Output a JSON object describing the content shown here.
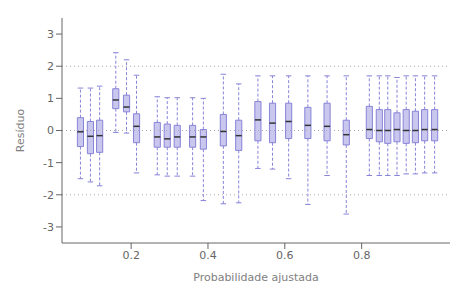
{
  "chart_data": {
    "type": "box",
    "xlabel": "Probabilidade ajustada",
    "ylabel": "Resíduo",
    "xlim": [
      0.02,
      1.03
    ],
    "ylim": [
      -3.5,
      3.5
    ],
    "xticks": [
      0.2,
      0.4,
      0.6,
      0.8
    ],
    "yticks": [
      -3,
      -2,
      -1,
      0,
      1,
      2,
      3
    ],
    "hlines": [
      -2.0,
      0.0,
      2.0
    ],
    "grid": false,
    "boxes": [
      {
        "x": 0.068,
        "q1": -0.5,
        "median": -0.04,
        "q3": 0.4,
        "low": -1.5,
        "high": 1.32
      },
      {
        "x": 0.094,
        "q1": -0.72,
        "median": -0.18,
        "q3": 0.28,
        "low": -1.6,
        "high": 1.32
      },
      {
        "x": 0.118,
        "q1": -0.68,
        "median": -0.16,
        "q3": 0.32,
        "low": -1.72,
        "high": 1.38
      },
      {
        "x": 0.16,
        "q1": 0.68,
        "median": 0.95,
        "q3": 1.3,
        "low": -0.06,
        "high": 2.42
      },
      {
        "x": 0.188,
        "q1": 0.58,
        "median": 0.73,
        "q3": 1.1,
        "low": -0.08,
        "high": 2.2
      },
      {
        "x": 0.214,
        "q1": -0.38,
        "median": 0.13,
        "q3": 0.52,
        "low": -1.32,
        "high": 1.72
      },
      {
        "x": 0.268,
        "q1": -0.52,
        "median": -0.2,
        "q3": 0.25,
        "low": -1.38,
        "high": 1.05
      },
      {
        "x": 0.294,
        "q1": -0.52,
        "median": -0.26,
        "q3": 0.2,
        "low": -1.42,
        "high": 1.02
      },
      {
        "x": 0.32,
        "q1": -0.52,
        "median": -0.2,
        "q3": 0.16,
        "low": -1.42,
        "high": 1.02
      },
      {
        "x": 0.36,
        "q1": -0.52,
        "median": -0.2,
        "q3": 0.16,
        "low": -1.42,
        "high": 1.02
      },
      {
        "x": 0.388,
        "q1": -0.58,
        "median": -0.2,
        "q3": 0.03,
        "low": -2.18,
        "high": 1.0
      },
      {
        "x": 0.44,
        "q1": -0.48,
        "median": -0.03,
        "q3": 0.5,
        "low": -2.28,
        "high": 1.75
      },
      {
        "x": 0.48,
        "q1": -0.62,
        "median": -0.16,
        "q3": 0.32,
        "low": -2.25,
        "high": 1.45
      },
      {
        "x": 0.53,
        "q1": -0.32,
        "median": 0.33,
        "q3": 0.9,
        "low": -1.18,
        "high": 1.7
      },
      {
        "x": 0.568,
        "q1": -0.38,
        "median": 0.23,
        "q3": 0.85,
        "low": -1.2,
        "high": 1.7
      },
      {
        "x": 0.61,
        "q1": -0.25,
        "median": 0.28,
        "q3": 0.85,
        "low": -1.5,
        "high": 1.7
      },
      {
        "x": 0.66,
        "q1": -0.25,
        "median": 0.16,
        "q3": 0.72,
        "low": -2.3,
        "high": 1.7
      },
      {
        "x": 0.71,
        "q1": -0.32,
        "median": 0.13,
        "q3": 0.85,
        "low": -1.4,
        "high": 1.7
      },
      {
        "x": 0.76,
        "q1": -0.45,
        "median": -0.13,
        "q3": 0.32,
        "low": -2.6,
        "high": 1.7
      },
      {
        "x": 0.82,
        "q1": -0.25,
        "median": 0.03,
        "q3": 0.75,
        "low": -1.4,
        "high": 1.7
      },
      {
        "x": 0.846,
        "q1": -0.35,
        "median": 0.0,
        "q3": 0.65,
        "low": -1.4,
        "high": 1.7
      },
      {
        "x": 0.868,
        "q1": -0.4,
        "median": 0.0,
        "q3": 0.65,
        "low": -1.4,
        "high": 1.7
      },
      {
        "x": 0.892,
        "q1": -0.35,
        "median": 0.03,
        "q3": 0.55,
        "low": -1.4,
        "high": 1.65
      },
      {
        "x": 0.916,
        "q1": -0.4,
        "median": 0.0,
        "q3": 0.65,
        "low": -1.35,
        "high": 1.7
      },
      {
        "x": 0.94,
        "q1": -0.38,
        "median": 0.0,
        "q3": 0.6,
        "low": -1.35,
        "high": 1.7
      },
      {
        "x": 0.964,
        "q1": -0.32,
        "median": 0.03,
        "q3": 0.65,
        "low": -1.32,
        "high": 1.7
      },
      {
        "x": 0.99,
        "q1": -0.32,
        "median": 0.03,
        "q3": 0.65,
        "low": -1.32,
        "high": 1.7
      }
    ]
  }
}
